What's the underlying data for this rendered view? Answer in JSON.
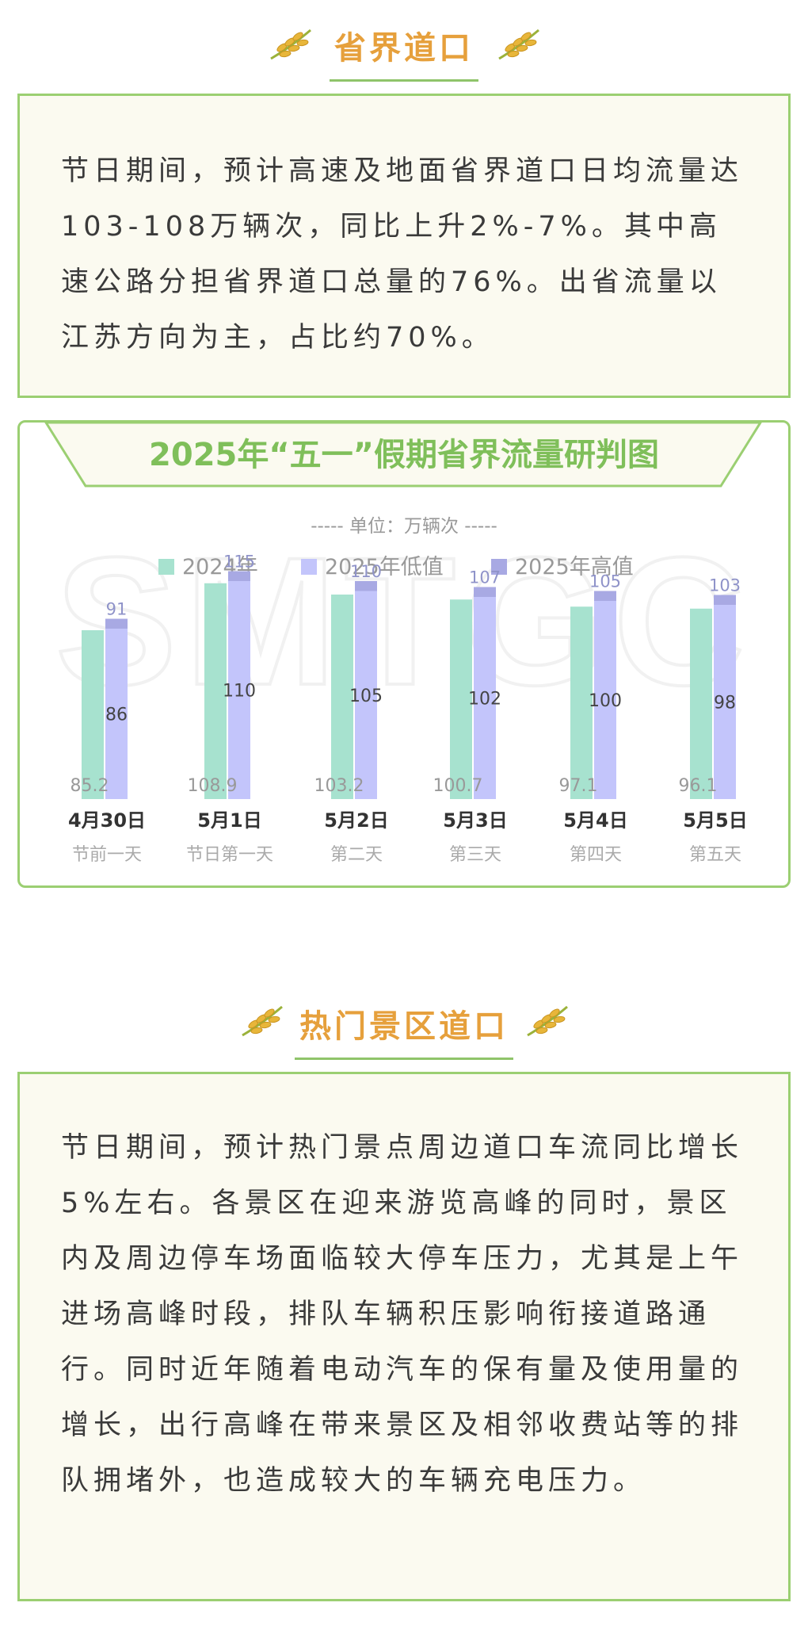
{
  "section1": {
    "title": "省界道口",
    "paragraph": "节日期间，预计高速及地面省界道口日均流量达103-108万辆次，同比上升2%-7%。其中高速公路分担省界道口总量的76%。出省流量以江苏方向为主，占比约70%。"
  },
  "chart_data": {
    "type": "bar",
    "title": "2025年“五一”假期省界流量研判图",
    "unit_label": "----- 单位：万辆次 -----",
    "legend": [
      "2024年",
      "2025年低值",
      "2025年高值"
    ],
    "categories": [
      "4月30日",
      "5月1日",
      "5月2日",
      "5月3日",
      "5月4日",
      "5月5日"
    ],
    "subcategories": [
      "节前一天",
      "节日第一天",
      "第二天",
      "第三天",
      "第四天",
      "第五天"
    ],
    "series": [
      {
        "name": "2024年",
        "values": [
          85.2,
          108.9,
          103.2,
          100.7,
          97.1,
          96.1
        ]
      },
      {
        "name": "2025年低值",
        "values": [
          86,
          110,
          105,
          102,
          100,
          98
        ]
      },
      {
        "name": "2025年高值",
        "values": [
          91,
          115,
          110,
          107,
          105,
          103
        ]
      }
    ],
    "ylim": [
      0,
      120
    ],
    "watermark": "SMTGC",
    "colors": {
      "y2024": "#a7e2cf",
      "low": "#c3c5fb",
      "high": "#a8a9e3",
      "high_label": "#8f93c9",
      "title": "#7fbf5a"
    }
  },
  "section2": {
    "title": "热门景区道口",
    "paragraph": "节日期间，预计热门景点周边道口车流同比增长5%左右。各景区在迎来游览高峰的同时，景区内及周边停车场面临较大停车压力，尤其是上午进场高峰时段，排队车辆积压影响衔接道路通行。同时近年随着电动汽车的保有量及使用量的增长，出行高峰在带来景区及相邻收费站等的排队拥堵外，也造成较大的车辆充电压力。"
  },
  "icons": {
    "decoration": "wheat-icon"
  }
}
